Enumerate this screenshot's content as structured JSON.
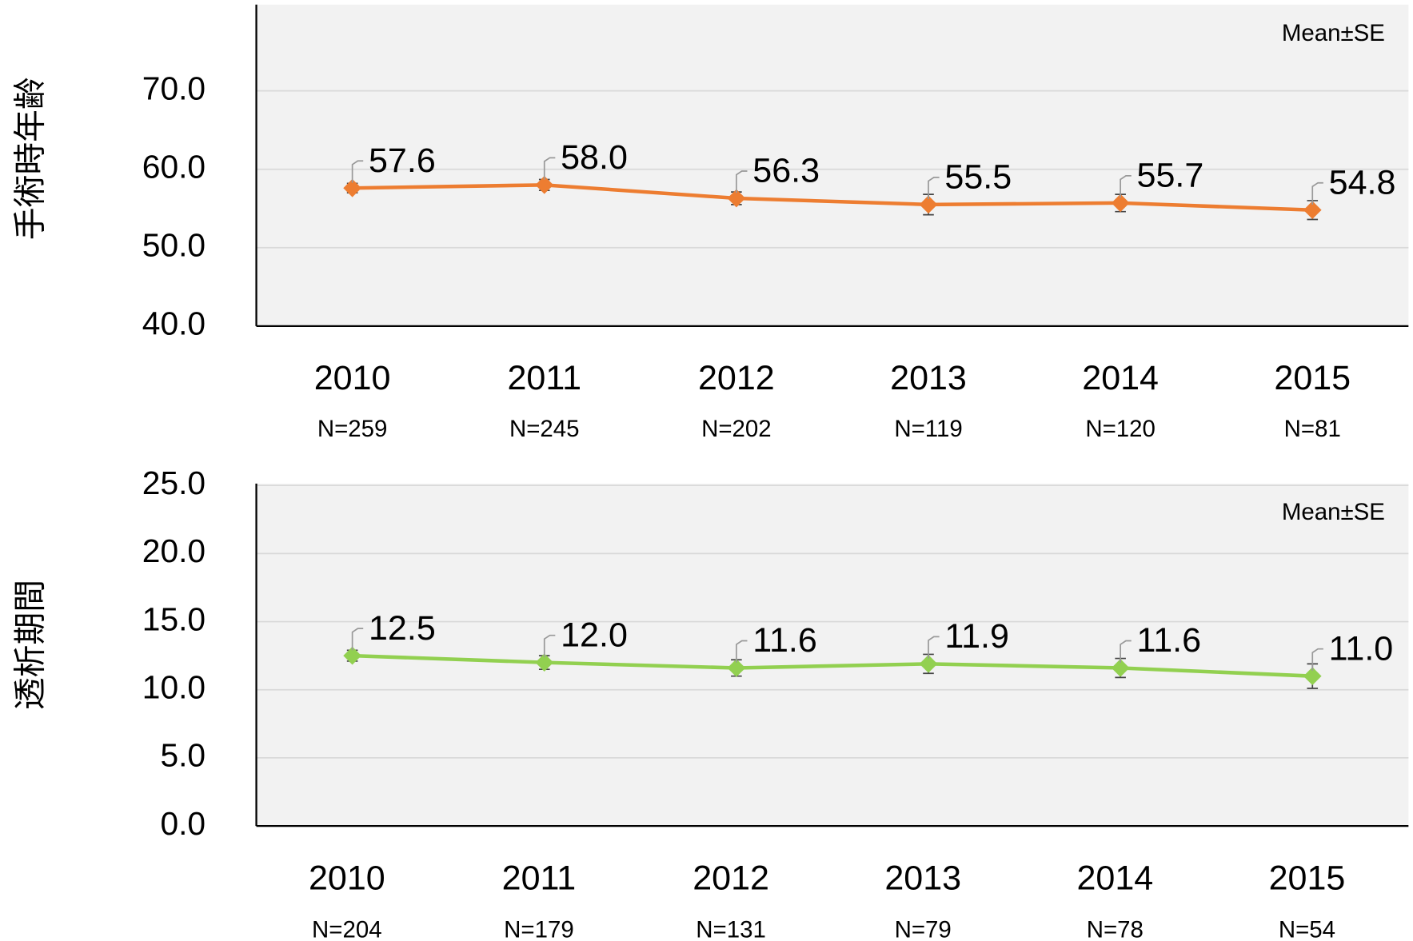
{
  "chart_data": [
    {
      "type": "line",
      "y_label": "手術時年齢",
      "annotation": "Mean±SE",
      "color": "#ED7D31",
      "grid": true,
      "categories": [
        "2010",
        "2011",
        "2012",
        "2013",
        "2014",
        "2015"
      ],
      "n_labels": [
        "N=259",
        "N=245",
        "N=202",
        "N=119",
        "N=120",
        "N=81"
      ],
      "values": [
        57.6,
        58.0,
        56.3,
        55.5,
        55.7,
        54.8
      ],
      "value_labels": [
        "57.6",
        "58.0",
        "56.3",
        "55.5",
        "55.7",
        "54.8"
      ],
      "errors": [
        0.6,
        0.7,
        0.8,
        1.3,
        1.1,
        1.2
      ],
      "ylim": [
        40,
        75
      ],
      "yticks": [
        {
          "value": 40,
          "label": "40.0"
        },
        {
          "value": 50,
          "label": "50.0"
        },
        {
          "value": 60,
          "label": "60.0"
        },
        {
          "value": 70,
          "label": "70.0"
        }
      ]
    },
    {
      "type": "line",
      "y_label": "透析期間",
      "annotation": "Mean±SE",
      "color": "#92D050",
      "grid": true,
      "categories": [
        "2010",
        "2011",
        "2012",
        "2013",
        "2014",
        "2015"
      ],
      "n_labels": [
        "N=204",
        "N=179",
        "N=131",
        "N=79",
        "N=78",
        "N=54"
      ],
      "values": [
        12.5,
        12.0,
        11.6,
        11.9,
        11.6,
        11.0
      ],
      "value_labels": [
        "12.5",
        "12.0",
        "11.6",
        "11.9",
        "11.6",
        "11.0"
      ],
      "errors": [
        0.4,
        0.5,
        0.6,
        0.7,
        0.7,
        0.9
      ],
      "ylim": [
        0,
        25
      ],
      "yticks": [
        {
          "value": 0,
          "label": "0.0"
        },
        {
          "value": 5,
          "label": "5.0"
        },
        {
          "value": 10,
          "label": "10.0"
        },
        {
          "value": 15,
          "label": "15.0"
        },
        {
          "value": 20,
          "label": "20.0"
        },
        {
          "value": 25,
          "label": "25.0"
        }
      ]
    }
  ]
}
